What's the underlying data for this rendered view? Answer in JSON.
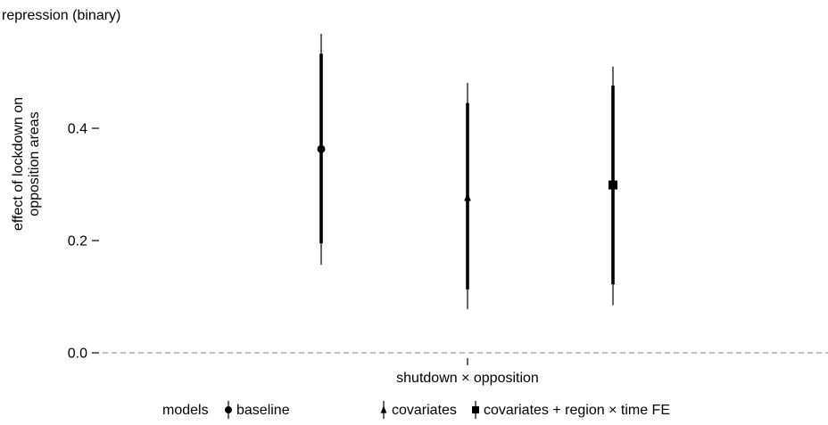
{
  "chart_data": {
    "type": "scatter",
    "title": "repression (binary)",
    "ylabel_lines": [
      "effect of lockdown on",
      "opposition areas"
    ],
    "xlabel": "",
    "categories": [
      "shutdown × opposition"
    ],
    "ylim": [
      0.0,
      0.6
    ],
    "yticks": [
      0.0,
      0.2,
      0.4
    ],
    "reference_line": 0.0,
    "grid": false,
    "legend": {
      "title": "models",
      "position": "bottom",
      "entries": [
        "baseline",
        "covariates",
        "covariates + region × time FE"
      ]
    },
    "series": [
      {
        "name": "baseline",
        "shape": "circle",
        "estimate": 0.363,
        "ci_90": [
          0.195,
          0.533
        ],
        "ci_95": [
          0.157,
          0.568
        ]
      },
      {
        "name": "covariates",
        "shape": "triangle",
        "estimate": 0.277,
        "ci_90": [
          0.113,
          0.445
        ],
        "ci_95": [
          0.078,
          0.481
        ]
      },
      {
        "name": "covariates + region × time FE",
        "shape": "square",
        "estimate": 0.299,
        "ci_90": [
          0.122,
          0.476
        ],
        "ci_95": [
          0.085,
          0.51
        ]
      }
    ]
  }
}
